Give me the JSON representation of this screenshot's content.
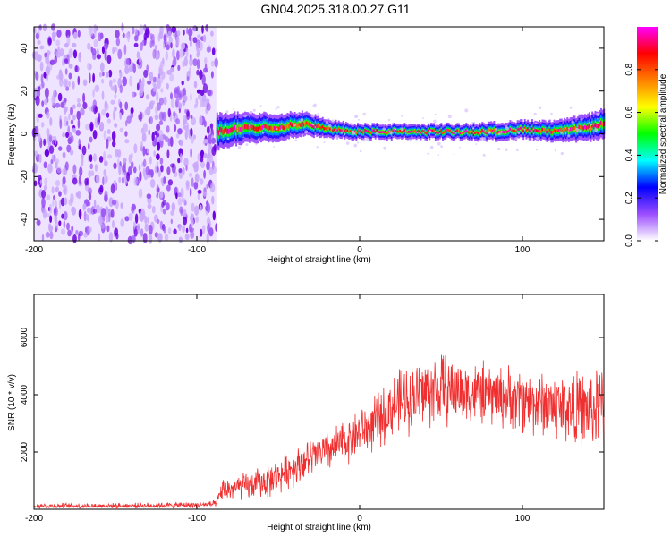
{
  "title": "GN04.2025.318.00.27.G11",
  "colors": {
    "snr_line": "#f03030",
    "background": "#ffffff",
    "axes": "#000000"
  },
  "chart_data": [
    {
      "type": "heatmap",
      "name": "spectrogram",
      "xlabel": "Height of straight line (km)",
      "ylabel": "Frequency (Hz)",
      "xlim": [
        -200,
        150
      ],
      "ylim": [
        -50,
        50
      ],
      "xticks": [
        -200,
        -100,
        0,
        100
      ],
      "yticks": [
        -40,
        -20,
        0,
        20,
        40
      ],
      "colorbar": {
        "label": "Normalized spectral amplitude",
        "range": [
          0,
          1
        ],
        "ticks": [
          0.0,
          0.2,
          0.4,
          0.6,
          0.8
        ],
        "tick_labels": [
          "0.0",
          "0.2",
          "0.4",
          "0.6",
          "0.8"
        ],
        "colormap": [
          "#ffffff",
          "#9b4dff",
          "#0000ff",
          "#00ffff",
          "#00ff00",
          "#ffff00",
          "#ff8000",
          "#ff0000",
          "#ff00ff"
        ]
      },
      "noise_region_x": [
        -200,
        -88
      ],
      "signal_track": {
        "x": [
          -88,
          -70,
          -50,
          -35,
          -20,
          0,
          20,
          40,
          60,
          80,
          100,
          120,
          140,
          150
        ],
        "freq": [
          1,
          3,
          3,
          5,
          2,
          1,
          1,
          1,
          1,
          1,
          2,
          1,
          3,
          5
        ],
        "width_hz": [
          12,
          10,
          9,
          8,
          6,
          5,
          5,
          5,
          5,
          6,
          6,
          7,
          9,
          10
        ]
      }
    },
    {
      "type": "line",
      "name": "snr",
      "xlabel": "Height of straight line (km)",
      "ylabel": "SNR (10 * v/v)",
      "xlim": [
        -200,
        150
      ],
      "ylim": [
        0,
        7500
      ],
      "xticks": [
        -200,
        -100,
        0,
        100
      ],
      "yticks": [
        2000,
        4000,
        6000
      ],
      "envelope": {
        "x": [
          -200,
          -150,
          -100,
          -88,
          -85,
          -70,
          -55,
          -40,
          -25,
          -10,
          0,
          10,
          20,
          30,
          40,
          50,
          60,
          70,
          80,
          90,
          100,
          110,
          120,
          130,
          140,
          150
        ],
        "mean": [
          120,
          120,
          150,
          180,
          650,
          800,
          1000,
          1500,
          1900,
          2300,
          2700,
          3000,
          3600,
          3900,
          4100,
          4200,
          4150,
          4050,
          4000,
          3900,
          3800,
          3700,
          3600,
          3500,
          3400,
          3600
        ],
        "spread": [
          70,
          70,
          80,
          100,
          300,
          380,
          450,
          500,
          550,
          600,
          650,
          750,
          850,
          950,
          1000,
          1000,
          900,
          850,
          850,
          850,
          900,
          900,
          950,
          1000,
          1100,
          1200
        ]
      }
    }
  ]
}
